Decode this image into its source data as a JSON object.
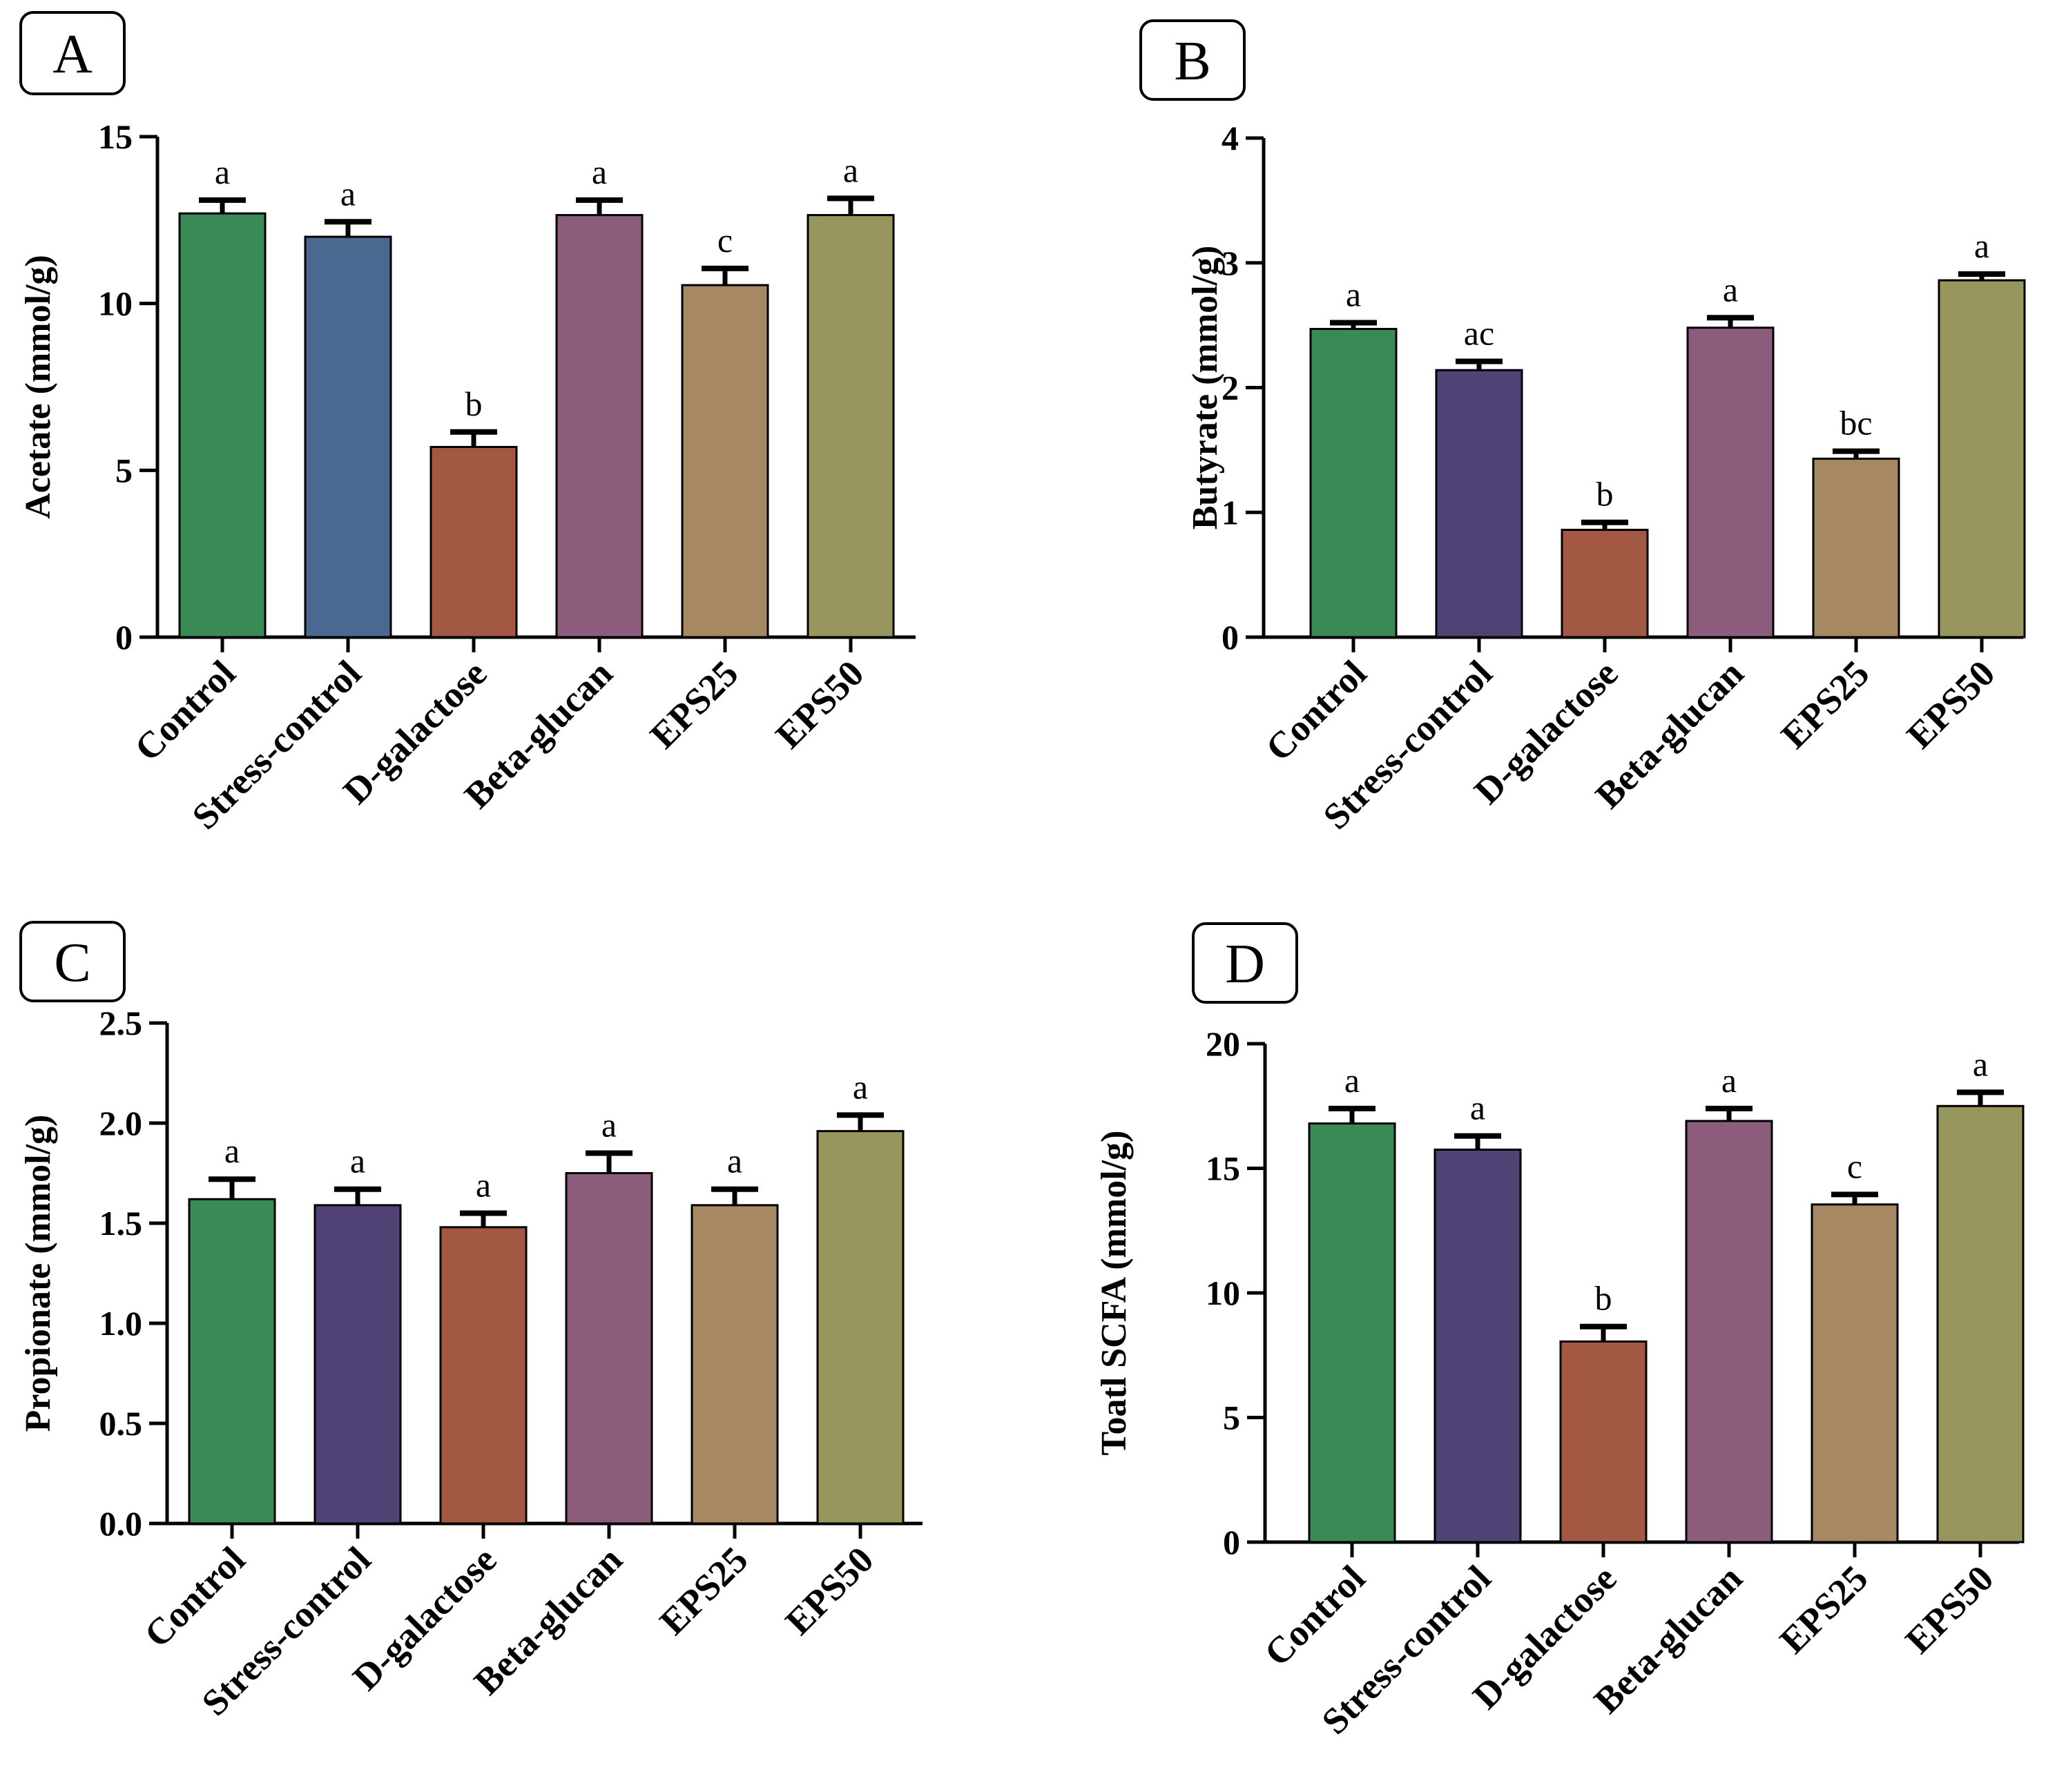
{
  "chart_data": [
    {
      "panel": "A",
      "type": "bar",
      "ylabel": "Acetate (mmol/g)",
      "ylim": [
        0,
        15
      ],
      "yticks": [
        0,
        5,
        10,
        15
      ],
      "categories": [
        "Control",
        "Stress-control",
        "D-galactose",
        "Beta-glucan",
        "EPS25",
        "EPS50"
      ],
      "values": [
        12.7,
        12.0,
        5.7,
        12.65,
        10.55,
        12.65
      ],
      "errors": [
        0.4,
        0.45,
        0.45,
        0.45,
        0.5,
        0.5
      ],
      "letters": [
        "a",
        "a",
        "b",
        "a",
        "c",
        "a"
      ],
      "colors": [
        "#3a8a55",
        "#4a6890",
        "#a35843",
        "#8c5c7c",
        "#a68862",
        "#96965e"
      ]
    },
    {
      "panel": "B",
      "type": "bar",
      "ylabel": "Butyrate (mmol/g)",
      "ylim": [
        0,
        4
      ],
      "yticks": [
        0,
        1,
        2,
        3,
        4
      ],
      "categories": [
        "Control",
        "Stress-control",
        "D-galactose",
        "Beta-glucan",
        "EPS25",
        "EPS50"
      ],
      "values": [
        2.47,
        2.14,
        0.86,
        2.48,
        1.43,
        2.86
      ],
      "errors": [
        0.05,
        0.07,
        0.06,
        0.08,
        0.06,
        0.05
      ],
      "letters": [
        "a",
        "ac",
        "b",
        "a",
        "bc",
        "a"
      ],
      "colors": [
        "#3a8a55",
        "#514276",
        "#a35843",
        "#8c5c7c",
        "#a68862",
        "#96965e"
      ]
    },
    {
      "panel": "C",
      "type": "bar",
      "ylabel": "Propionate (mmol/g)",
      "ylim": [
        0,
        2.5
      ],
      "yticks": [
        "0.0",
        "0.5",
        "1.0",
        "1.5",
        "2.0",
        "2.5"
      ],
      "categories": [
        "Control",
        "Stress-control",
        "D-galactose",
        "Beta-glucan",
        "EPS25",
        "EPS50"
      ],
      "values": [
        1.62,
        1.59,
        1.48,
        1.75,
        1.59,
        1.96
      ],
      "errors": [
        0.1,
        0.08,
        0.07,
        0.1,
        0.08,
        0.08
      ],
      "letters": [
        "a",
        "a",
        "a",
        "a",
        "a",
        "a"
      ],
      "colors": [
        "#3a8a55",
        "#514276",
        "#a35843",
        "#8c5c7c",
        "#a68862",
        "#96965e"
      ]
    },
    {
      "panel": "D",
      "type": "bar",
      "ylabel": "Toatl SCFA (mmol/g)",
      "ylim": [
        0,
        20
      ],
      "yticks": [
        0,
        5,
        10,
        15,
        20
      ],
      "categories": [
        "Control",
        "Stress-control",
        "D-galactose",
        "Beta-glucan",
        "EPS25",
        "EPS50"
      ],
      "values": [
        16.8,
        15.75,
        8.05,
        16.9,
        13.55,
        17.5
      ],
      "errors": [
        0.6,
        0.55,
        0.6,
        0.5,
        0.4,
        0.55
      ],
      "letters": [
        "a",
        "a",
        "b",
        "a",
        "c",
        "a"
      ],
      "colors": [
        "#3a8a55",
        "#514276",
        "#a35843",
        "#8c5c7c",
        "#a68862",
        "#96965e"
      ]
    }
  ]
}
